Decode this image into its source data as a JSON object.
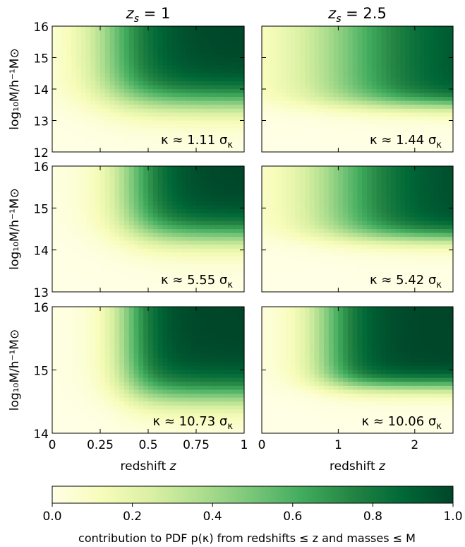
{
  "chart_data": {
    "type": "heatmap",
    "columns": [
      {
        "title_base": "z",
        "title_sub": "s",
        "title_tail": " = 1",
        "zmax": 1,
        "xticks": [
          0,
          0.25,
          0.5,
          0.75,
          1
        ],
        "xtick_labels": [
          "0",
          "0.25",
          "0.5",
          "0.75",
          "1"
        ]
      },
      {
        "title_base": "z",
        "title_sub": "s",
        "title_tail": " = 2.5",
        "zmax": 2.5,
        "xticks": [
          0,
          1,
          2
        ],
        "xtick_labels": [
          "0",
          "1",
          "2"
        ]
      }
    ],
    "rows": [
      {
        "ylim": [
          12,
          16
        ],
        "yticks": [
          12,
          13,
          14,
          15,
          16
        ],
        "ytick_labels": [
          "12",
          "13",
          "14",
          "15",
          "16"
        ]
      },
      {
        "ylim": [
          13,
          16
        ],
        "yticks": [
          13,
          14,
          15,
          16
        ],
        "ytick_labels": [
          "13",
          "14",
          "15",
          "16"
        ]
      },
      {
        "ylim": [
          14,
          16
        ],
        "yticks": [
          14,
          15,
          16
        ],
        "ytick_labels": [
          "14",
          "15",
          "16"
        ]
      }
    ],
    "panels": [
      {
        "row": 0,
        "col": 0,
        "kappa_label": "κ ≈ 1.11 σ",
        "kappa_sub": "κ",
        "z_half": 0.32,
        "m_half": 13.6,
        "z_scale": 0.12,
        "m_scale": 0.35
      },
      {
        "row": 0,
        "col": 1,
        "kappa_label": "κ ≈ 1.44 σ",
        "kappa_sub": "κ",
        "z_half": 0.45,
        "m_half": 13.5,
        "z_scale": 0.22,
        "m_scale": 0.2
      },
      {
        "row": 1,
        "col": 0,
        "kappa_label": "κ ≈ 5.55 σ",
        "kappa_sub": "κ",
        "z_half": 0.42,
        "m_half": 14.35,
        "z_scale": 0.1,
        "m_scale": 0.25
      },
      {
        "row": 1,
        "col": 1,
        "kappa_label": "κ ≈ 5.42 σ",
        "kappa_sub": "κ",
        "z_half": 0.42,
        "m_half": 14.3,
        "z_scale": 0.18,
        "m_scale": 0.16
      },
      {
        "row": 2,
        "col": 0,
        "kappa_label": "κ ≈ 10.73 σ",
        "kappa_sub": "κ",
        "z_half": 0.4,
        "m_half": 14.6,
        "z_scale": 0.08,
        "m_scale": 0.18
      },
      {
        "row": 2,
        "col": 1,
        "kappa_label": "κ ≈ 10.06 σ",
        "kappa_sub": "κ",
        "z_half": 0.35,
        "m_half": 14.75,
        "z_scale": 0.1,
        "m_scale": 0.1
      }
    ],
    "xlabel_text": "redshift ",
    "xlabel_var": "z",
    "ylabel": "log₁₀M/h⁻¹M⊙",
    "colorbar": {
      "range": [
        0,
        1
      ],
      "ticks": [
        0,
        0.2,
        0.4,
        0.6,
        0.8,
        1
      ],
      "tick_labels": [
        "0.0",
        "0.2",
        "0.4",
        "0.6",
        "0.8",
        "1.0"
      ],
      "label": "contribution to PDF p(κ) from redshifts ≤ z and masses ≤ M",
      "colors": [
        "#ffffe5",
        "#f7fcb9",
        "#d9f0a3",
        "#addd8e",
        "#78c679",
        "#41ab5d",
        "#238443",
        "#006837",
        "#004529"
      ]
    }
  }
}
